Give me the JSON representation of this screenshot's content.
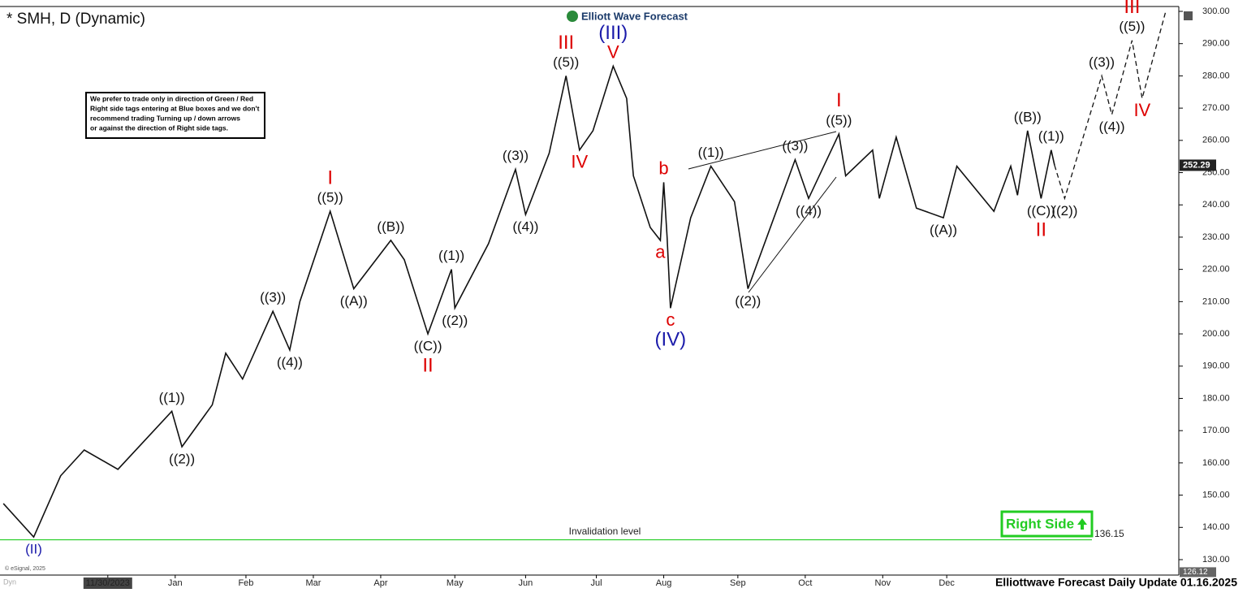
{
  "chart_data": {
    "type": "line",
    "title": "* SMH, D (Dynamic)",
    "logo": "Elliott Wave Forecast",
    "note": [
      "We prefer to trade only in direction of Green / Red",
      "Right side tags entering at Blue boxes and we don't",
      "recommend trading Turning up / down arrows",
      "or against the direction of Right side tags."
    ],
    "right_side_tag": "Right Side",
    "footer": "Elliottwave Forecast Daily Update 01.16.2025",
    "copyright": "© eSignal, 2025",
    "mode": "Dyn",
    "xlim": [
      0,
      350
    ],
    "ylim": [
      130,
      300
    ],
    "xticks": [
      {
        "value": 32,
        "label": "11/30/2023"
      },
      {
        "value": 52,
        "label": "Jan"
      },
      {
        "value": 73,
        "label": "Feb"
      },
      {
        "value": 93,
        "label": "Mar"
      },
      {
        "value": 113,
        "label": "Apr"
      },
      {
        "value": 135,
        "label": "May"
      },
      {
        "value": 156,
        "label": "Jun"
      },
      {
        "value": 177,
        "label": "Jul"
      },
      {
        "value": 197,
        "label": "Aug"
      },
      {
        "value": 219,
        "label": "Sep"
      },
      {
        "value": 239,
        "label": "Oct"
      },
      {
        "value": 262,
        "label": "Nov"
      },
      {
        "value": 281,
        "label": "Dec"
      }
    ],
    "yticks": [
      {
        "value": 130,
        "label": "130.00"
      },
      {
        "value": 140,
        "label": "140.00"
      },
      {
        "value": 150,
        "label": "150.00"
      },
      {
        "value": 160,
        "label": "160.00"
      },
      {
        "value": 170,
        "label": "170.00"
      },
      {
        "value": 180,
        "label": "180.00"
      },
      {
        "value": 190,
        "label": "190.00"
      },
      {
        "value": 200,
        "label": "200.00"
      },
      {
        "value": 210,
        "label": "210.00"
      },
      {
        "value": 220,
        "label": "220.00"
      },
      {
        "value": 230,
        "label": "230.00"
      },
      {
        "value": 240,
        "label": "240.00"
      },
      {
        "value": 250,
        "label": "250.00"
      },
      {
        "value": 260,
        "label": "260.00"
      },
      {
        "value": 270,
        "label": "270.00"
      },
      {
        "value": 280,
        "label": "280.00"
      },
      {
        "value": 290,
        "label": "290.00"
      },
      {
        "value": 300,
        "label": "300.00"
      }
    ],
    "last_price": 252.29,
    "bottom_marker": 126.12,
    "invalidation": {
      "text": "Invalidation level",
      "level": 136.15,
      "color": "#22cc22"
    },
    "series": [
      {
        "color": "#111111",
        "dashed": false,
        "x": [
          1,
          10,
          18,
          25,
          35,
          51,
          54,
          63,
          67,
          72,
          81,
          86,
          89,
          98,
          105,
          116,
          120,
          127,
          134,
          135,
          145,
          153,
          156,
          163,
          168,
          172,
          176,
          182,
          186,
          188,
          193,
          196,
          197,
          198,
          199,
          205,
          211,
          218,
          222,
          229,
          236,
          240,
          249,
          251,
          259,
          261,
          266,
          272,
          280,
          284,
          295,
          300,
          302,
          305,
          309,
          312,
          313
        ],
        "values": [
          147.4,
          137,
          156,
          164,
          158,
          176,
          165,
          178,
          194,
          186,
          207,
          195,
          210,
          238,
          214,
          229,
          223,
          200,
          220,
          208,
          228,
          251,
          237,
          256,
          280,
          257,
          263,
          283,
          273,
          249,
          233,
          229,
          247,
          230,
          208,
          236,
          252,
          241,
          214,
          234,
          254,
          242,
          262,
          249,
          257,
          242,
          261,
          239,
          236,
          252,
          238,
          252,
          243,
          263,
          242,
          257,
          252.29
        ],
        "labels": [
          null,
          "(II)",
          null,
          null,
          null,
          "((1))",
          "((2))",
          null,
          null,
          null,
          "((3))",
          "((4))",
          null,
          "((5))",
          "((A))",
          "((B))",
          null,
          "((C))",
          "((1))",
          "((2))",
          null,
          "((3))",
          "((4))",
          null,
          "((5))",
          "IV",
          null,
          "V",
          null,
          null,
          null,
          "a",
          "b",
          null,
          "c",
          null,
          "((1))",
          null,
          "((2))",
          null,
          "((3))",
          "((4))",
          "((5))",
          null,
          null,
          null,
          null,
          null,
          "((A))",
          null,
          null,
          null,
          null,
          "((B))",
          "((C))",
          "((1))",
          null
        ],
        "label_colors": [
          null,
          "#1a1aaa",
          null,
          null,
          null,
          "#111111",
          "#111111",
          null,
          null,
          null,
          "#111111",
          "#111111",
          null,
          "#111111",
          "#111111",
          "#111111",
          null,
          "#111111",
          "#111111",
          "#111111",
          null,
          "#111111",
          "#111111",
          null,
          "#111111",
          "#dd0000",
          null,
          "#dd0000",
          null,
          null,
          null,
          "#dd0000",
          "#dd0000",
          null,
          "#dd0000",
          null,
          "#111111",
          null,
          "#111111",
          null,
          "#111111",
          "#111111",
          "#111111",
          null,
          null,
          null,
          null,
          null,
          "#111111",
          null,
          null,
          null,
          null,
          "#111111",
          "#111111",
          "#111111",
          null
        ],
        "degree_labels": [
          null,
          null,
          null,
          null,
          null,
          null,
          null,
          null,
          null,
          null,
          null,
          null,
          null,
          "I",
          null,
          null,
          null,
          "II",
          null,
          null,
          null,
          null,
          null,
          null,
          "III",
          null,
          null,
          "(III)",
          null,
          null,
          null,
          null,
          null,
          null,
          "(IV)",
          null,
          null,
          null,
          null,
          null,
          null,
          null,
          "I",
          null,
          null,
          null,
          null,
          null,
          null,
          null,
          null,
          null,
          null,
          null,
          "II",
          null,
          null
        ],
        "degree_colors": [
          null,
          null,
          null,
          null,
          null,
          null,
          null,
          null,
          null,
          null,
          null,
          null,
          null,
          "#dd0000",
          null,
          null,
          null,
          "#dd0000",
          null,
          null,
          null,
          null,
          null,
          null,
          "#dd0000",
          null,
          null,
          "#1a1aaa",
          null,
          null,
          null,
          null,
          null,
          null,
          "#1a1aaa",
          null,
          null,
          null,
          null,
          null,
          null,
          null,
          "#dd0000",
          null,
          null,
          null,
          null,
          null,
          null,
          null,
          null,
          null,
          null,
          null,
          "#dd0000",
          null,
          null
        ]
      },
      {
        "color": "#111111",
        "dashed": true,
        "x": [
          313,
          316,
          327,
          330,
          336,
          339,
          346
        ],
        "values": [
          252.29,
          242,
          280,
          268,
          291,
          273,
          300
        ],
        "labels": [
          null,
          "((2))",
          "((3))",
          "((4))",
          "((5))",
          "IV",
          null
        ],
        "label_colors": [
          null,
          "#111111",
          "#111111",
          "#111111",
          "#111111",
          "#dd0000",
          null
        ],
        "degree_labels": [
          null,
          null,
          null,
          null,
          "III",
          null,
          null
        ],
        "degree_colors": [
          null,
          null,
          null,
          null,
          "#dd0000",
          null,
          null
        ]
      }
    ]
  }
}
